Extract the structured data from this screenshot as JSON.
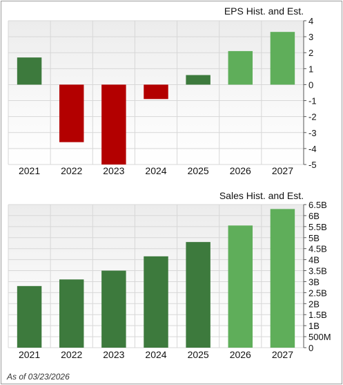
{
  "footer": {
    "as_of": "As of 03/23/2026"
  },
  "colors": {
    "hist": "#3d7a3d",
    "est": "#5fae5a",
    "neg": "#b30000",
    "grid": "#d7d7d7",
    "axis": "#555555"
  },
  "chart_data": [
    {
      "type": "bar",
      "title": "EPS Hist. and Est.",
      "categories": [
        "2021",
        "2022",
        "2023",
        "2024",
        "2025",
        "2026",
        "2027"
      ],
      "values": [
        1.7,
        -3.6,
        -5.0,
        -0.9,
        0.6,
        2.1,
        3.3
      ],
      "estimated": [
        false,
        false,
        false,
        false,
        false,
        true,
        true
      ],
      "ylim": [
        -5,
        4
      ],
      "yticks": [
        4,
        3,
        2,
        1,
        0,
        -1,
        -2,
        -3,
        -4,
        -5
      ],
      "ytick_labels": [
        "4",
        "3",
        "2",
        "1",
        "0",
        "-1",
        "-2",
        "-3",
        "-4",
        "-5"
      ],
      "grid": true,
      "legend": "none"
    },
    {
      "type": "bar",
      "title": "Sales Hist. and Est.",
      "categories": [
        "2021",
        "2022",
        "2023",
        "2024",
        "2025",
        "2026",
        "2027"
      ],
      "values": [
        2.8,
        3.1,
        3.5,
        4.15,
        4.8,
        5.55,
        6.3
      ],
      "value_unit": "B",
      "estimated": [
        false,
        false,
        false,
        false,
        false,
        true,
        true
      ],
      "ylim": [
        0,
        6.5
      ],
      "yticks": [
        6.5,
        6,
        5.5,
        5,
        4.5,
        4,
        3.5,
        3,
        2.5,
        2,
        1.5,
        1,
        0.5,
        0
      ],
      "ytick_labels": [
        "6.5B",
        "6B",
        "5.5B",
        "5B",
        "4.5B",
        "4B",
        "3.5B",
        "3B",
        "2.5B",
        "2B",
        "1.5B",
        "1B",
        "500M",
        "0"
      ],
      "grid": true,
      "legend": "none"
    }
  ]
}
